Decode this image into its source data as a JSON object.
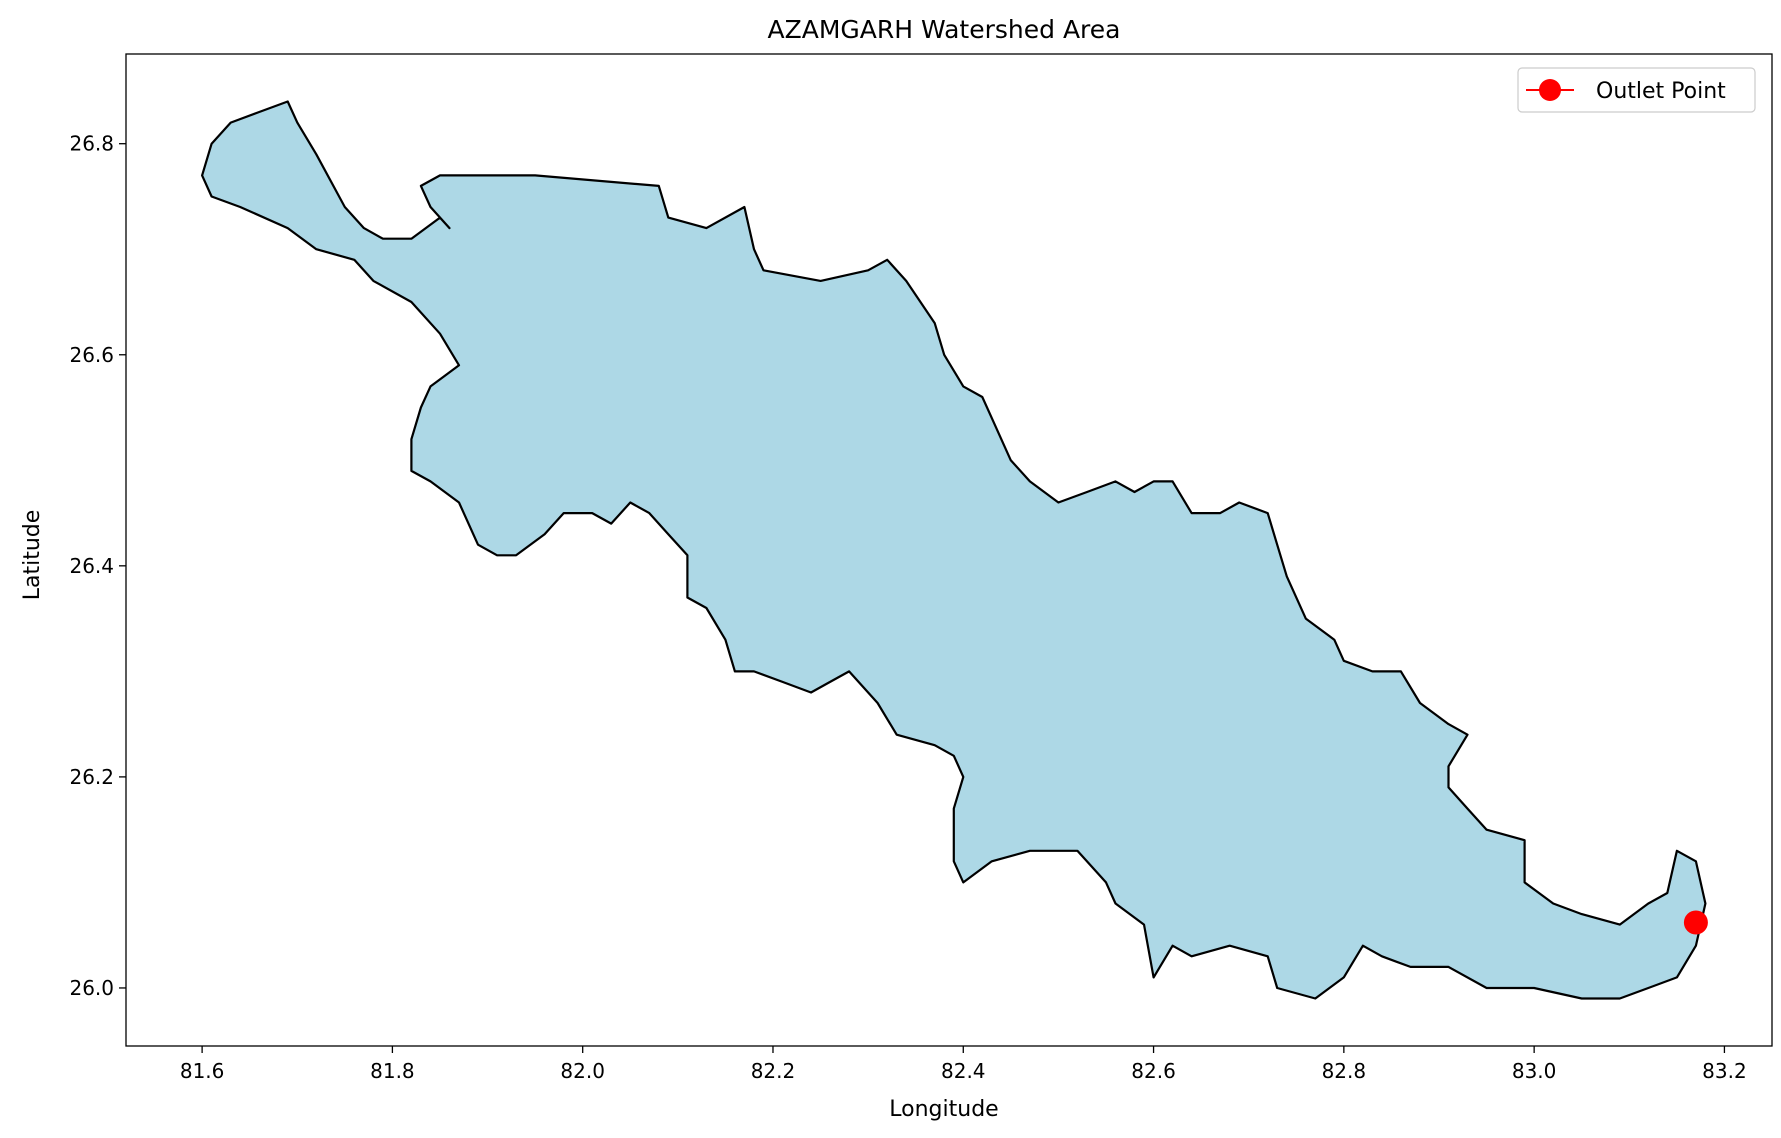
{
  "chart_data": {
    "type": "map",
    "title": "AZAMGARH Watershed Area",
    "xlabel": "Longitude",
    "ylabel": "Latitude",
    "xlim": [
      81.52,
      83.25
    ],
    "ylim": [
      25.945,
      26.885
    ],
    "xticks": [
      {
        "value": 81.6,
        "label": "81.6"
      },
      {
        "value": 81.8,
        "label": "81.8"
      },
      {
        "value": 82.0,
        "label": "82.0"
      },
      {
        "value": 82.2,
        "label": "82.2"
      },
      {
        "value": 82.4,
        "label": "82.4"
      },
      {
        "value": 82.6,
        "label": "82.6"
      },
      {
        "value": 82.8,
        "label": "82.8"
      },
      {
        "value": 83.0,
        "label": "83.0"
      },
      {
        "value": 83.2,
        "label": "83.2"
      }
    ],
    "yticks": [
      {
        "value": 26.0,
        "label": "26.0"
      },
      {
        "value": 26.2,
        "label": "26.2"
      },
      {
        "value": 26.4,
        "label": "26.4"
      },
      {
        "value": 26.6,
        "label": "26.6"
      },
      {
        "value": 26.8,
        "label": "26.8"
      }
    ],
    "grid": false,
    "legend": {
      "position": "top-right",
      "entries": [
        {
          "label": "Outlet Point",
          "color": "#ff0000",
          "marker": "circle"
        }
      ]
    },
    "watershed": {
      "fill": "#add8e6",
      "stroke": "#000000",
      "boundary": [
        [
          81.6,
          26.77
        ],
        [
          81.61,
          26.8
        ],
        [
          81.63,
          26.82
        ],
        [
          81.66,
          26.83
        ],
        [
          81.69,
          26.84
        ],
        [
          81.7,
          26.82
        ],
        [
          81.72,
          26.79
        ],
        [
          81.75,
          26.74
        ],
        [
          81.77,
          26.72
        ],
        [
          81.79,
          26.71
        ],
        [
          81.82,
          26.71
        ],
        [
          81.85,
          26.73
        ],
        [
          81.86,
          26.72
        ],
        [
          81.84,
          26.74
        ],
        [
          81.83,
          26.76
        ],
        [
          81.85,
          26.77
        ],
        [
          81.95,
          26.77
        ],
        [
          82.08,
          26.76
        ],
        [
          82.09,
          26.73
        ],
        [
          82.13,
          26.72
        ],
        [
          82.17,
          26.74
        ],
        [
          82.18,
          26.7
        ],
        [
          82.19,
          26.68
        ],
        [
          82.25,
          26.67
        ],
        [
          82.3,
          26.68
        ],
        [
          82.32,
          26.69
        ],
        [
          82.34,
          26.67
        ],
        [
          82.37,
          26.63
        ],
        [
          82.38,
          26.6
        ],
        [
          82.4,
          26.57
        ],
        [
          82.42,
          26.56
        ],
        [
          82.43,
          26.54
        ],
        [
          82.45,
          26.5
        ],
        [
          82.47,
          26.48
        ],
        [
          82.5,
          26.46
        ],
        [
          82.53,
          26.47
        ],
        [
          82.56,
          26.48
        ],
        [
          82.58,
          26.47
        ],
        [
          82.6,
          26.48
        ],
        [
          82.62,
          26.48
        ],
        [
          82.64,
          26.45
        ],
        [
          82.67,
          26.45
        ],
        [
          82.69,
          26.46
        ],
        [
          82.72,
          26.45
        ],
        [
          82.73,
          26.42
        ],
        [
          82.74,
          26.39
        ],
        [
          82.76,
          26.35
        ],
        [
          82.79,
          26.33
        ],
        [
          82.8,
          26.31
        ],
        [
          82.83,
          26.3
        ],
        [
          82.86,
          26.3
        ],
        [
          82.88,
          26.27
        ],
        [
          82.91,
          26.25
        ],
        [
          82.93,
          26.24
        ],
        [
          82.91,
          26.21
        ],
        [
          82.91,
          26.19
        ],
        [
          82.93,
          26.17
        ],
        [
          82.95,
          26.15
        ],
        [
          82.99,
          26.14
        ],
        [
          82.99,
          26.1
        ],
        [
          83.02,
          26.08
        ],
        [
          83.05,
          26.07
        ],
        [
          83.09,
          26.06
        ],
        [
          83.12,
          26.08
        ],
        [
          83.14,
          26.09
        ],
        [
          83.15,
          26.13
        ],
        [
          83.17,
          26.12
        ],
        [
          83.18,
          26.08
        ],
        [
          83.17,
          26.04
        ],
        [
          83.15,
          26.01
        ],
        [
          83.12,
          26.0
        ],
        [
          83.09,
          25.99
        ],
        [
          83.05,
          25.99
        ],
        [
          83.0,
          26.0
        ],
        [
          82.95,
          26.0
        ],
        [
          82.91,
          26.02
        ],
        [
          82.87,
          26.02
        ],
        [
          82.84,
          26.03
        ],
        [
          82.82,
          26.04
        ],
        [
          82.8,
          26.01
        ],
        [
          82.77,
          25.99
        ],
        [
          82.73,
          26.0
        ],
        [
          82.72,
          26.03
        ],
        [
          82.68,
          26.04
        ],
        [
          82.64,
          26.03
        ],
        [
          82.62,
          26.04
        ],
        [
          82.6,
          26.01
        ],
        [
          82.59,
          26.06
        ],
        [
          82.56,
          26.08
        ],
        [
          82.55,
          26.1
        ],
        [
          82.52,
          26.13
        ],
        [
          82.47,
          26.13
        ],
        [
          82.43,
          26.12
        ],
        [
          82.4,
          26.1
        ],
        [
          82.39,
          26.12
        ],
        [
          82.39,
          26.17
        ],
        [
          82.4,
          26.2
        ],
        [
          82.39,
          26.22
        ],
        [
          82.37,
          26.23
        ],
        [
          82.33,
          26.24
        ],
        [
          82.31,
          26.27
        ],
        [
          82.28,
          26.3
        ],
        [
          82.26,
          26.29
        ],
        [
          82.24,
          26.28
        ],
        [
          82.21,
          26.29
        ],
        [
          82.18,
          26.3
        ],
        [
          82.16,
          26.3
        ],
        [
          82.15,
          26.33
        ],
        [
          82.13,
          26.36
        ],
        [
          82.11,
          26.37
        ],
        [
          82.11,
          26.41
        ],
        [
          82.09,
          26.43
        ],
        [
          82.07,
          26.45
        ],
        [
          82.05,
          26.46
        ],
        [
          82.03,
          26.44
        ],
        [
          82.01,
          26.45
        ],
        [
          81.98,
          26.45
        ],
        [
          81.96,
          26.43
        ],
        [
          81.93,
          26.41
        ],
        [
          81.91,
          26.41
        ],
        [
          81.89,
          26.42
        ],
        [
          81.87,
          26.46
        ],
        [
          81.84,
          26.48
        ],
        [
          81.82,
          26.49
        ],
        [
          81.82,
          26.52
        ],
        [
          81.83,
          26.55
        ],
        [
          81.84,
          26.57
        ],
        [
          81.87,
          26.59
        ],
        [
          81.85,
          26.62
        ],
        [
          81.82,
          26.65
        ],
        [
          81.78,
          26.67
        ],
        [
          81.76,
          26.69
        ],
        [
          81.72,
          26.7
        ],
        [
          81.69,
          26.72
        ],
        [
          81.64,
          26.74
        ],
        [
          81.61,
          26.75
        ],
        [
          81.6,
          26.77
        ]
      ]
    },
    "outlet_point": {
      "label": "Outlet Point",
      "lon": 83.17,
      "lat": 26.062,
      "color": "#ff0000"
    }
  }
}
